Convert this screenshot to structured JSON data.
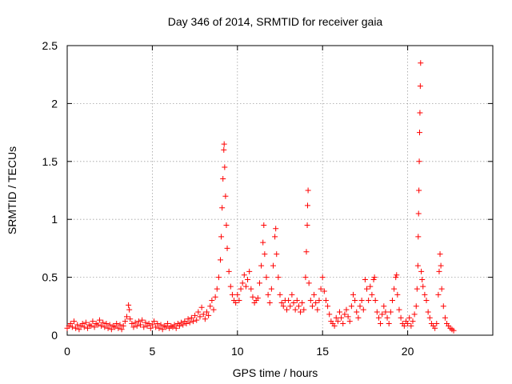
{
  "chart_data": {
    "type": "scatter",
    "title": "Day 346 of 2014, SRMTID for receiver gaia",
    "xlabel": "GPS time / hours",
    "ylabel": "SRMTID / TECUs",
    "xlim": [
      0,
      25
    ],
    "ylim": [
      0,
      2.5
    ],
    "x_ticks": [
      0,
      5,
      10,
      15,
      20
    ],
    "x_tick_labels": [
      "0",
      "5",
      "10",
      "15",
      "20"
    ],
    "y_ticks": [
      0,
      0.5,
      1,
      1.5,
      2,
      2.5
    ],
    "y_tick_labels": [
      "0",
      "0.5",
      "1",
      "1.5",
      "2",
      "2.5"
    ],
    "grid": true,
    "marker": "+",
    "marker_color": "#ff0000",
    "series": [
      {
        "name": "SRMTID",
        "points": [
          [
            0.0,
            0.06
          ],
          [
            0.1,
            0.08
          ],
          [
            0.2,
            0.1
          ],
          [
            0.3,
            0.07
          ],
          [
            0.4,
            0.12
          ],
          [
            0.5,
            0.06
          ],
          [
            0.6,
            0.09
          ],
          [
            0.7,
            0.05
          ],
          [
            0.8,
            0.08
          ],
          [
            0.9,
            0.1
          ],
          [
            1.0,
            0.07
          ],
          [
            1.1,
            0.11
          ],
          [
            1.2,
            0.06
          ],
          [
            1.3,
            0.09
          ],
          [
            1.4,
            0.08
          ],
          [
            1.5,
            0.12
          ],
          [
            1.6,
            0.07
          ],
          [
            1.7,
            0.1
          ],
          [
            1.8,
            0.09
          ],
          [
            1.9,
            0.13
          ],
          [
            2.0,
            0.08
          ],
          [
            2.1,
            0.11
          ],
          [
            2.2,
            0.07
          ],
          [
            2.3,
            0.1
          ],
          [
            2.4,
            0.06
          ],
          [
            2.5,
            0.09
          ],
          [
            2.6,
            0.05
          ],
          [
            2.7,
            0.08
          ],
          [
            2.8,
            0.07
          ],
          [
            2.9,
            0.1
          ],
          [
            3.0,
            0.06
          ],
          [
            3.1,
            0.09
          ],
          [
            3.2,
            0.05
          ],
          [
            3.3,
            0.08
          ],
          [
            3.4,
            0.12
          ],
          [
            3.5,
            0.16
          ],
          [
            3.6,
            0.26
          ],
          [
            3.65,
            0.22
          ],
          [
            3.7,
            0.14
          ],
          [
            3.8,
            0.1
          ],
          [
            3.9,
            0.07
          ],
          [
            4.0,
            0.11
          ],
          [
            4.1,
            0.08
          ],
          [
            4.2,
            0.12
          ],
          [
            4.3,
            0.09
          ],
          [
            4.4,
            0.13
          ],
          [
            4.5,
            0.07
          ],
          [
            4.6,
            0.11
          ],
          [
            4.7,
            0.08
          ],
          [
            4.8,
            0.1
          ],
          [
            4.9,
            0.06
          ],
          [
            5.0,
            0.09
          ],
          [
            5.1,
            0.12
          ],
          [
            5.2,
            0.07
          ],
          [
            5.3,
            0.1
          ],
          [
            5.4,
            0.06
          ],
          [
            5.5,
            0.09
          ],
          [
            5.6,
            0.05
          ],
          [
            5.7,
            0.08
          ],
          [
            5.8,
            0.07
          ],
          [
            5.9,
            0.1
          ],
          [
            6.0,
            0.06
          ],
          [
            6.1,
            0.08
          ],
          [
            6.2,
            0.07
          ],
          [
            6.3,
            0.09
          ],
          [
            6.4,
            0.06
          ],
          [
            6.5,
            0.1
          ],
          [
            6.6,
            0.08
          ],
          [
            6.7,
            0.11
          ],
          [
            6.8,
            0.09
          ],
          [
            6.9,
            0.12
          ],
          [
            7.0,
            0.1
          ],
          [
            7.1,
            0.14
          ],
          [
            7.2,
            0.11
          ],
          [
            7.3,
            0.15
          ],
          [
            7.4,
            0.12
          ],
          [
            7.5,
            0.17
          ],
          [
            7.6,
            0.13
          ],
          [
            7.7,
            0.2
          ],
          [
            7.8,
            0.16
          ],
          [
            7.9,
            0.24
          ],
          [
            8.0,
            0.18
          ],
          [
            8.1,
            0.14
          ],
          [
            8.2,
            0.2
          ],
          [
            8.3,
            0.17
          ],
          [
            8.4,
            0.25
          ],
          [
            8.5,
            0.3
          ],
          [
            8.6,
            0.22
          ],
          [
            8.7,
            0.33
          ],
          [
            8.8,
            0.4
          ],
          [
            8.9,
            0.5
          ],
          [
            9.0,
            0.65
          ],
          [
            9.05,
            0.85
          ],
          [
            9.1,
            1.1
          ],
          [
            9.15,
            1.35
          ],
          [
            9.2,
            1.6
          ],
          [
            9.22,
            1.65
          ],
          [
            9.25,
            1.45
          ],
          [
            9.3,
            1.2
          ],
          [
            9.35,
            0.95
          ],
          [
            9.4,
            0.75
          ],
          [
            9.5,
            0.55
          ],
          [
            9.6,
            0.42
          ],
          [
            9.7,
            0.35
          ],
          [
            9.8,
            0.3
          ],
          [
            9.9,
            0.28
          ],
          [
            10.0,
            0.35
          ],
          [
            10.1,
            0.3
          ],
          [
            10.2,
            0.4
          ],
          [
            10.3,
            0.45
          ],
          [
            10.4,
            0.52
          ],
          [
            10.5,
            0.42
          ],
          [
            10.6,
            0.48
          ],
          [
            10.7,
            0.55
          ],
          [
            10.8,
            0.4
          ],
          [
            10.9,
            0.33
          ],
          [
            11.0,
            0.28
          ],
          [
            11.1,
            0.3
          ],
          [
            11.2,
            0.32
          ],
          [
            11.3,
            0.45
          ],
          [
            11.4,
            0.6
          ],
          [
            11.5,
            0.8
          ],
          [
            11.55,
            0.95
          ],
          [
            11.6,
            0.7
          ],
          [
            11.7,
            0.5
          ],
          [
            11.8,
            0.35
          ],
          [
            11.9,
            0.28
          ],
          [
            12.0,
            0.4
          ],
          [
            12.1,
            0.6
          ],
          [
            12.2,
            0.85
          ],
          [
            12.25,
            0.92
          ],
          [
            12.3,
            0.7
          ],
          [
            12.4,
            0.5
          ],
          [
            12.5,
            0.35
          ],
          [
            12.6,
            0.28
          ],
          [
            12.7,
            0.25
          ],
          [
            12.8,
            0.3
          ],
          [
            12.9,
            0.22
          ],
          [
            13.0,
            0.3
          ],
          [
            13.1,
            0.25
          ],
          [
            13.2,
            0.35
          ],
          [
            13.3,
            0.28
          ],
          [
            13.4,
            0.22
          ],
          [
            13.5,
            0.3
          ],
          [
            13.6,
            0.25
          ],
          [
            13.7,
            0.2
          ],
          [
            13.8,
            0.28
          ],
          [
            13.9,
            0.22
          ],
          [
            14.0,
            0.5
          ],
          [
            14.05,
            0.72
          ],
          [
            14.1,
            0.95
          ],
          [
            14.12,
            1.12
          ],
          [
            14.15,
            1.25
          ],
          [
            14.2,
            0.45
          ],
          [
            14.3,
            0.3
          ],
          [
            14.4,
            0.25
          ],
          [
            14.5,
            0.35
          ],
          [
            14.6,
            0.28
          ],
          [
            14.7,
            0.22
          ],
          [
            14.8,
            0.3
          ],
          [
            14.9,
            0.4
          ],
          [
            15.0,
            0.5
          ],
          [
            15.1,
            0.38
          ],
          [
            15.2,
            0.3
          ],
          [
            15.3,
            0.25
          ],
          [
            15.4,
            0.18
          ],
          [
            15.5,
            0.12
          ],
          [
            15.6,
            0.1
          ],
          [
            15.7,
            0.08
          ],
          [
            15.8,
            0.15
          ],
          [
            15.9,
            0.12
          ],
          [
            16.0,
            0.2
          ],
          [
            16.1,
            0.15
          ],
          [
            16.2,
            0.1
          ],
          [
            16.3,
            0.18
          ],
          [
            16.4,
            0.22
          ],
          [
            16.5,
            0.16
          ],
          [
            16.6,
            0.12
          ],
          [
            16.7,
            0.25
          ],
          [
            16.8,
            0.35
          ],
          [
            16.9,
            0.3
          ],
          [
            17.0,
            0.2
          ],
          [
            17.1,
            0.15
          ],
          [
            17.2,
            0.25
          ],
          [
            17.3,
            0.3
          ],
          [
            17.4,
            0.22
          ],
          [
            17.5,
            0.48
          ],
          [
            17.6,
            0.4
          ],
          [
            17.7,
            0.3
          ],
          [
            17.8,
            0.42
          ],
          [
            17.9,
            0.35
          ],
          [
            18.0,
            0.48
          ],
          [
            18.05,
            0.5
          ],
          [
            18.1,
            0.3
          ],
          [
            18.2,
            0.2
          ],
          [
            18.3,
            0.15
          ],
          [
            18.4,
            0.1
          ],
          [
            18.5,
            0.18
          ],
          [
            18.6,
            0.25
          ],
          [
            18.7,
            0.2
          ],
          [
            18.8,
            0.15
          ],
          [
            18.9,
            0.1
          ],
          [
            19.0,
            0.2
          ],
          [
            19.1,
            0.3
          ],
          [
            19.2,
            0.4
          ],
          [
            19.3,
            0.5
          ],
          [
            19.35,
            0.52
          ],
          [
            19.4,
            0.35
          ],
          [
            19.5,
            0.22
          ],
          [
            19.6,
            0.15
          ],
          [
            19.7,
            0.1
          ],
          [
            19.8,
            0.08
          ],
          [
            19.9,
            0.12
          ],
          [
            20.0,
            0.1
          ],
          [
            20.1,
            0.15
          ],
          [
            20.2,
            0.08
          ],
          [
            20.3,
            0.12
          ],
          [
            20.4,
            0.18
          ],
          [
            20.5,
            0.25
          ],
          [
            20.55,
            0.4
          ],
          [
            20.6,
            0.6
          ],
          [
            20.62,
            0.85
          ],
          [
            20.64,
            1.05
          ],
          [
            20.66,
            1.25
          ],
          [
            20.68,
            1.5
          ],
          [
            20.7,
            1.75
          ],
          [
            20.72,
            1.92
          ],
          [
            20.74,
            2.15
          ],
          [
            20.76,
            2.35
          ],
          [
            20.8,
            0.55
          ],
          [
            20.85,
            0.48
          ],
          [
            20.9,
            0.42
          ],
          [
            21.0,
            0.35
          ],
          [
            21.1,
            0.3
          ],
          [
            21.2,
            0.2
          ],
          [
            21.3,
            0.15
          ],
          [
            21.4,
            0.1
          ],
          [
            21.5,
            0.08
          ],
          [
            21.6,
            0.06
          ],
          [
            21.7,
            0.1
          ],
          [
            21.8,
            0.35
          ],
          [
            21.85,
            0.55
          ],
          [
            21.9,
            0.7
          ],
          [
            21.95,
            0.6
          ],
          [
            22.0,
            0.4
          ],
          [
            22.1,
            0.25
          ],
          [
            22.2,
            0.15
          ],
          [
            22.3,
            0.1
          ],
          [
            22.4,
            0.08
          ],
          [
            22.5,
            0.06
          ],
          [
            22.6,
            0.05
          ],
          [
            22.7,
            0.04
          ]
        ]
      }
    ]
  }
}
